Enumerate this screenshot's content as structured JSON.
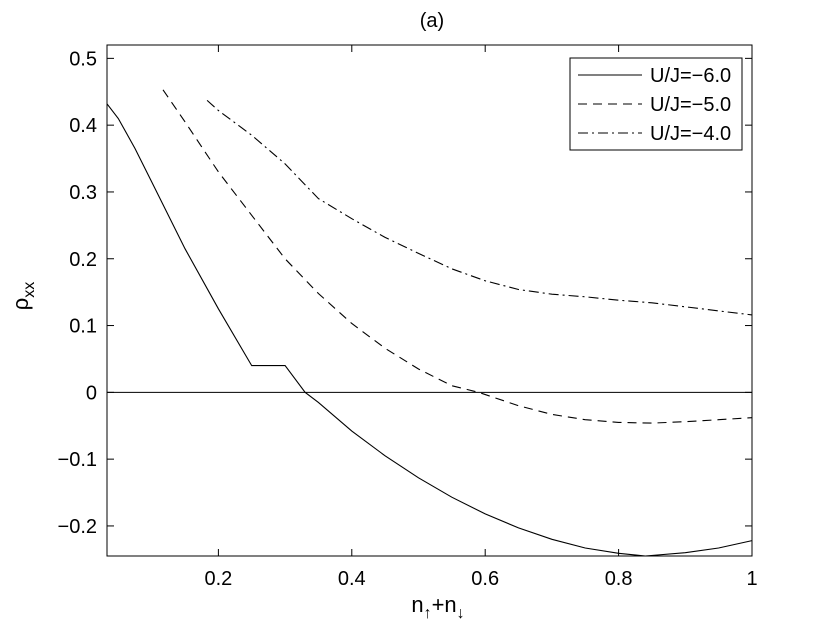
{
  "chart_data": {
    "type": "line",
    "title": "(a)",
    "xlabel": {
      "parts": [
        {
          "text": "n",
          "shift": "none"
        },
        {
          "text": "↑",
          "shift": "sub"
        },
        {
          "text": "+n",
          "shift": "none"
        },
        {
          "text": "↓",
          "shift": "sub"
        }
      ]
    },
    "ylabel": {
      "parts": [
        {
          "text": "ρ",
          "shift": "none"
        },
        {
          "text": "xx",
          "shift": "sub"
        }
      ]
    },
    "xlim": [
      0.033,
      1.0
    ],
    "ylim": [
      -0.245,
      0.52
    ],
    "xticks": [
      0.2,
      0.4,
      0.6,
      0.8,
      1.0
    ],
    "xtick_labels": [
      "0.2",
      "0.4",
      "0.6",
      "0.8",
      "1"
    ],
    "yticks": [
      -0.2,
      -0.1,
      0.0,
      0.1,
      0.2,
      0.3,
      0.4,
      0.5
    ],
    "ytick_labels": [
      "−0.2",
      "−0.1",
      "0",
      "0.1",
      "0.2",
      "0.3",
      "0.4",
      "0.5"
    ],
    "grid": false,
    "legend_position": "top-right",
    "series": [
      {
        "name": "U/J=−6.0",
        "dash": "solid",
        "x": [
          0.033,
          0.05,
          0.075,
          0.1,
          0.15,
          0.2,
          0.25,
          0.3,
          0.33,
          0.35,
          0.4,
          0.45,
          0.5,
          0.55,
          0.6,
          0.65,
          0.7,
          0.75,
          0.8,
          0.84,
          0.9,
          0.95,
          1.0
        ],
        "y": [
          0.432,
          0.41,
          0.365,
          0.315,
          0.215,
          0.125,
          0.04,
          0.04,
          0.0,
          -0.015,
          -0.058,
          -0.095,
          -0.128,
          -0.157,
          -0.182,
          -0.203,
          -0.22,
          -0.233,
          -0.241,
          -0.245,
          -0.24,
          -0.233,
          -0.222
        ]
      },
      {
        "name": "U/J=−5.0",
        "dash": "dashed",
        "x": [
          0.117,
          0.15,
          0.2,
          0.25,
          0.3,
          0.35,
          0.4,
          0.45,
          0.5,
          0.55,
          0.59,
          0.65,
          0.7,
          0.75,
          0.8,
          0.85,
          0.9,
          0.95,
          1.0
        ],
        "y": [
          0.453,
          0.405,
          0.33,
          0.265,
          0.2,
          0.148,
          0.103,
          0.066,
          0.035,
          0.01,
          0.0,
          -0.02,
          -0.033,
          -0.041,
          -0.045,
          -0.046,
          -0.044,
          -0.041,
          -0.038
        ]
      },
      {
        "name": "U/J=−4.0",
        "dash": "dashdot",
        "x": [
          0.183,
          0.2,
          0.25,
          0.3,
          0.35,
          0.4,
          0.45,
          0.5,
          0.55,
          0.6,
          0.65,
          0.7,
          0.75,
          0.8,
          0.85,
          0.9,
          0.95,
          1.0
        ],
        "y": [
          0.437,
          0.422,
          0.385,
          0.342,
          0.29,
          0.26,
          0.232,
          0.208,
          0.185,
          0.167,
          0.154,
          0.147,
          0.143,
          0.138,
          0.134,
          0.128,
          0.122,
          0.116
        ]
      }
    ]
  }
}
